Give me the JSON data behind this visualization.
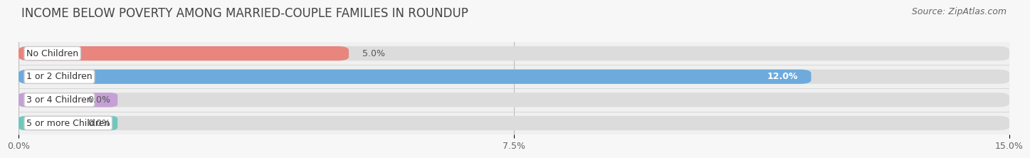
{
  "title": "INCOME BELOW POVERTY AMONG MARRIED-COUPLE FAMILIES IN ROUNDUP",
  "source": "Source: ZipAtlas.com",
  "categories": [
    "No Children",
    "1 or 2 Children",
    "3 or 4 Children",
    "5 or more Children"
  ],
  "values": [
    5.0,
    12.0,
    0.0,
    0.0
  ],
  "bar_colors": [
    "#e8857d",
    "#6eaadc",
    "#c4a0d4",
    "#6ec8bc"
  ],
  "xlim": [
    0,
    15.0
  ],
  "xticks": [
    0.0,
    7.5,
    15.0
  ],
  "xtick_labels": [
    "0.0%",
    "7.5%",
    "15.0%"
  ],
  "bg_color": "#f0f0f0",
  "row_bg_color": "#e8e8e8",
  "title_fontsize": 12,
  "source_fontsize": 9,
  "bar_height": 0.62,
  "label_fontsize": 9,
  "value_fontsize": 9
}
